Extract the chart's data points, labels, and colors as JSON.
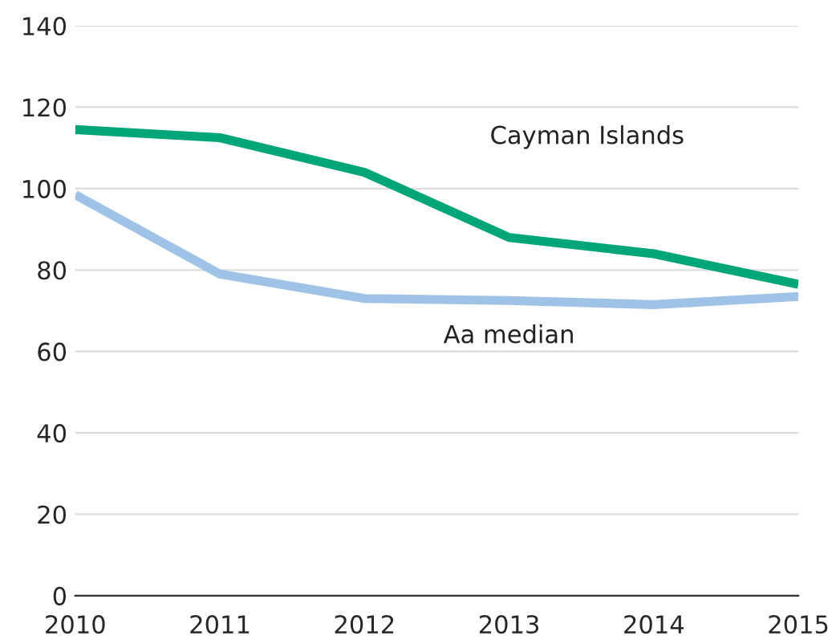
{
  "chart_data": {
    "type": "line",
    "x": [
      2010,
      2011,
      2012,
      2013,
      2014,
      2015
    ],
    "series": [
      {
        "name": "Cayman Islands",
        "color": "#00a677",
        "values": [
          114.5,
          112.5,
          104,
          88,
          84,
          76.5
        ]
      },
      {
        "name": "Aa median",
        "color": "#9fc3e7",
        "values": [
          98.5,
          79,
          73,
          72.5,
          71.5,
          73.5
        ]
      }
    ],
    "xlim": [
      2010,
      2015
    ],
    "xticks": [
      2010,
      2011,
      2012,
      2013,
      2014,
      2015
    ],
    "ylim": [
      0,
      140
    ],
    "yticks": [
      0,
      20,
      40,
      60,
      80,
      100,
      120,
      140
    ],
    "grid": "y",
    "legend": false
  }
}
